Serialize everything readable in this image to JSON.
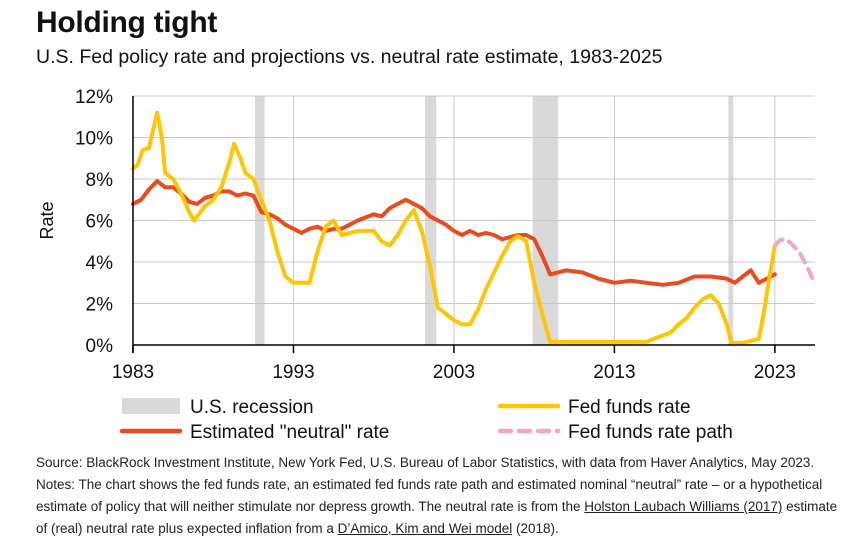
{
  "title": "Holding tight",
  "subtitle": "U.S. Fed policy rate and projections vs. neutral rate estimate, 1983-2025",
  "source": {
    "part1": "Source: BlackRock Investment Institute, New York Fed, U.S. Bureau of Labor Statistics, with data from Haver Analytics, May 2023. Notes: The chart shows the fed funds rate, an estimated fed funds rate path and estimated nominal “neutral” rate – or a hypothetical estimate of policy that will neither stimulate nor depress growth. The neutral rate is from the ",
    "link1": "Holston Laubach Williams (2017)",
    "part2": " estimate of (real) neutral rate plus expected inflation from a ",
    "link2": "D’Amico, Kim and Wei model",
    "part3": " (2018)."
  },
  "colors": {
    "fed_funds": "#FFC600",
    "neutral": "#EB4A1E",
    "path": "#F4A6C4",
    "recession": "#D9D9D9",
    "grid": "#C8C8C8",
    "axis": "#000000"
  },
  "chart_data": {
    "type": "line",
    "xlabel": "",
    "ylabel": "Rate",
    "xlim": [
      1983,
      2025.5
    ],
    "ylim": [
      0,
      12
    ],
    "x_ticks": [
      1983,
      1993,
      2003,
      2013,
      2023
    ],
    "x_tick_labels": [
      "1983",
      "1993",
      "2003",
      "2013",
      "2023"
    ],
    "y_ticks": [
      0,
      2,
      4,
      6,
      8,
      10,
      12
    ],
    "y_tick_labels": [
      "0%",
      "2%",
      "4%",
      "6%",
      "8%",
      "10%",
      "12%"
    ],
    "recessions": [
      {
        "start": 1990.6,
        "end": 1991.2
      },
      {
        "start": 2001.2,
        "end": 2001.9
      },
      {
        "start": 2007.9,
        "end": 2009.5
      },
      {
        "start": 2020.1,
        "end": 2020.4
      }
    ],
    "series": [
      {
        "name": "Fed funds rate",
        "style": "solid",
        "x": [
          1983,
          1983.3,
          1983.6,
          1984,
          1984.5,
          1984.8,
          1985,
          1985.5,
          1986,
          1986.5,
          1986.8,
          1987,
          1987.5,
          1988,
          1988.5,
          1989,
          1989.3,
          1989.7,
          1990,
          1990.5,
          1991,
          1991.5,
          1992,
          1992.5,
          1993,
          1994,
          1994.5,
          1995,
          1995.5,
          1996,
          1997,
          1998,
          1998.5,
          1999,
          1999.5,
          2000,
          2000.5,
          2001,
          2001.5,
          2002,
          2003,
          2003.5,
          2004,
          2004.5,
          2005,
          2005.5,
          2006,
          2006.5,
          2007,
          2007.5,
          2008,
          2008.5,
          2009,
          2010,
          2012,
          2015,
          2015.8,
          2016.5,
          2017,
          2017.5,
          2018,
          2018.5,
          2019,
          2019.5,
          2020,
          2020.3,
          2021,
          2022,
          2022.3,
          2022.6,
          2023
        ],
        "values": [
          8.5,
          8.7,
          9.4,
          9.5,
          11.2,
          10.0,
          8.3,
          8.0,
          7.3,
          6.4,
          6.0,
          6.2,
          6.7,
          7.0,
          7.6,
          8.8,
          9.7,
          9.0,
          8.3,
          8.0,
          7.0,
          6.0,
          4.5,
          3.3,
          3.0,
          3.0,
          4.5,
          5.7,
          6.0,
          5.3,
          5.5,
          5.5,
          5.0,
          4.8,
          5.3,
          6.0,
          6.5,
          5.5,
          3.8,
          1.8,
          1.2,
          1.0,
          1.0,
          1.7,
          2.7,
          3.5,
          4.3,
          5.0,
          5.25,
          5.0,
          3.0,
          1.5,
          0.15,
          0.15,
          0.15,
          0.15,
          0.4,
          0.6,
          1.0,
          1.3,
          1.8,
          2.2,
          2.4,
          2.0,
          1.0,
          0.1,
          0.1,
          0.3,
          1.5,
          3.0,
          4.8
        ]
      },
      {
        "name": "Estimated \"neutral\" rate",
        "style": "solid",
        "x": [
          1983,
          1983.5,
          1984,
          1984.5,
          1985,
          1985.5,
          1986,
          1986.5,
          1987,
          1987.5,
          1988,
          1988.5,
          1989,
          1989.5,
          1990,
          1990.5,
          1991,
          1991.5,
          1992,
          1992.5,
          1993,
          1993.5,
          1994,
          1994.5,
          1995,
          1995.5,
          1996,
          1997,
          1998,
          1998.5,
          1999,
          1999.5,
          2000,
          2000.5,
          2001,
          2001.5,
          2002,
          2002.5,
          2003,
          2003.5,
          2004,
          2004.5,
          2005,
          2005.5,
          2006,
          2006.5,
          2007,
          2007.5,
          2008,
          2008.5,
          2009,
          2010,
          2011,
          2012,
          2013,
          2014,
          2015,
          2016,
          2017,
          2018,
          2019,
          2020,
          2020.5,
          2021,
          2021.5,
          2022,
          2022.5,
          2023
        ],
        "values": [
          6.8,
          7.0,
          7.5,
          7.9,
          7.6,
          7.6,
          7.3,
          6.9,
          6.8,
          7.1,
          7.2,
          7.4,
          7.4,
          7.2,
          7.3,
          7.2,
          6.4,
          6.3,
          6.1,
          5.8,
          5.6,
          5.4,
          5.6,
          5.7,
          5.5,
          5.6,
          5.6,
          6.0,
          6.3,
          6.2,
          6.6,
          6.8,
          7.0,
          6.8,
          6.6,
          6.2,
          6.0,
          5.8,
          5.5,
          5.3,
          5.5,
          5.3,
          5.4,
          5.3,
          5.1,
          5.2,
          5.3,
          5.3,
          5.1,
          4.3,
          3.4,
          3.6,
          3.5,
          3.2,
          3.0,
          3.1,
          3.0,
          2.9,
          3.0,
          3.3,
          3.3,
          3.2,
          3.0,
          3.3,
          3.6,
          3.0,
          3.2,
          3.4
        ]
      },
      {
        "name": "Fed funds rate path",
        "style": "dashed",
        "x": [
          2023,
          2023.3,
          2023.7,
          2024,
          2024.5,
          2025,
          2025.4
        ],
        "values": [
          4.8,
          5.05,
          5.1,
          4.9,
          4.5,
          3.8,
          3.1
        ]
      }
    ],
    "legend": [
      {
        "label": "U.S. recession",
        "kind": "recession"
      },
      {
        "label": "Fed funds rate",
        "kind": "fed_funds"
      },
      {
        "label": "Estimated \"neutral\" rate",
        "kind": "neutral"
      },
      {
        "label": "Fed funds rate path",
        "kind": "path"
      }
    ]
  }
}
